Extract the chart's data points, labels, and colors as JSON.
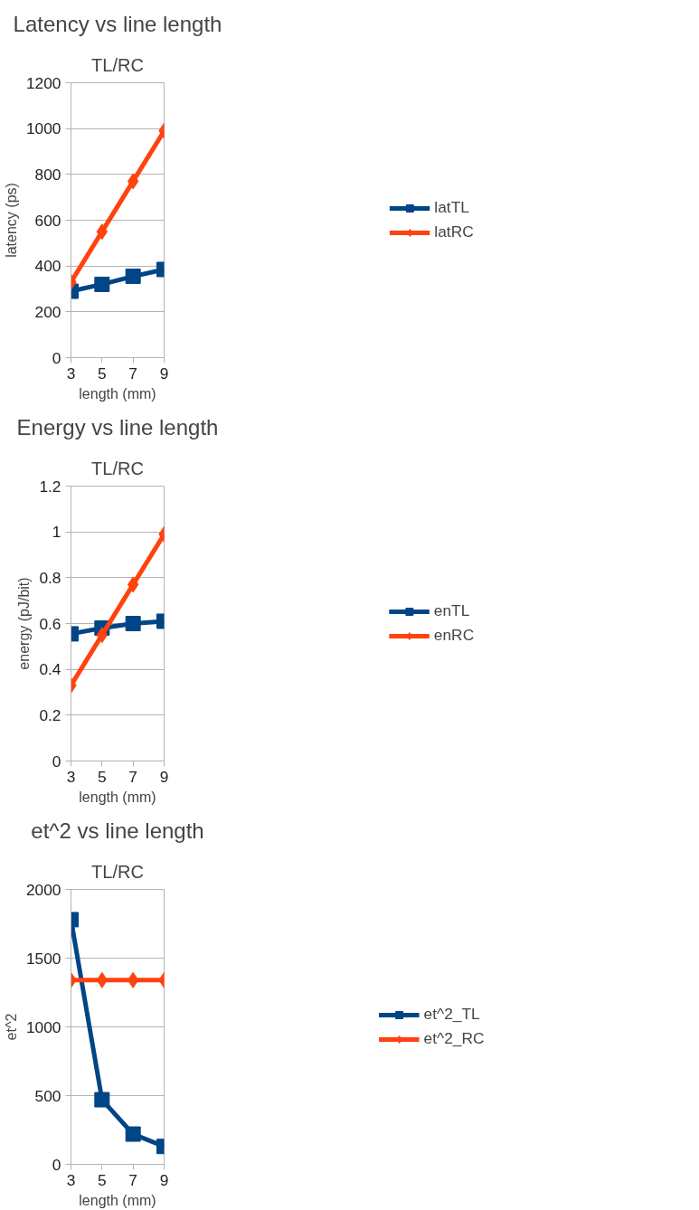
{
  "chart_data": [
    {
      "type": "line",
      "title": "Latency vs line length",
      "subtitle": "TL/RC",
      "xlabel": "length (mm)",
      "ylabel": "latency (ps)",
      "x": [
        3,
        5,
        7,
        9
      ],
      "xlim": [
        3,
        9
      ],
      "xticks": [
        3,
        5,
        7,
        9
      ],
      "ylim": [
        0,
        1200
      ],
      "yticks": [
        0,
        200,
        400,
        600,
        800,
        1000,
        1200
      ],
      "grid": "y",
      "legend": "right",
      "line_style": "solid",
      "series": [
        {
          "name": "latTL",
          "color": "#004586",
          "marker": "square",
          "values": [
            290,
            320,
            355,
            385
          ]
        },
        {
          "name": "latRC",
          "color": "#ff420e",
          "marker": "diamond",
          "values": [
            330,
            550,
            770,
            990
          ]
        }
      ]
    },
    {
      "type": "line",
      "title": "Energy vs line length",
      "subtitle": "TL/RC",
      "xlabel": "length (mm)",
      "ylabel": "energy (pJ/bit)",
      "x": [
        3,
        5,
        7,
        9
      ],
      "xlim": [
        3,
        9
      ],
      "xticks": [
        3,
        5,
        7,
        9
      ],
      "ylim": [
        0,
        1.2
      ],
      "yticks": [
        0,
        0.2,
        0.4,
        0.6,
        0.8,
        1,
        1.2
      ],
      "grid": "y",
      "legend": "right",
      "line_style": "solid",
      "series": [
        {
          "name": "enTL",
          "color": "#004586",
          "marker": "square",
          "values": [
            0.555,
            0.58,
            0.6,
            0.61
          ]
        },
        {
          "name": "enRC",
          "color": "#ff420e",
          "marker": "diamond",
          "values": [
            0.33,
            0.55,
            0.77,
            0.99
          ]
        }
      ]
    },
    {
      "type": "line",
      "title": "et^2 vs line length",
      "subtitle": "TL/RC",
      "xlabel": "length (mm)",
      "ylabel": "et^2",
      "x": [
        3,
        5,
        7,
        9
      ],
      "xlim": [
        3,
        9
      ],
      "xticks": [
        3,
        5,
        7,
        9
      ],
      "ylim": [
        0,
        2000
      ],
      "yticks": [
        0,
        500,
        1000,
        1500,
        2000
      ],
      "grid": "y",
      "legend": "right",
      "line_style": "solid",
      "series": [
        {
          "name": "et^2_TL",
          "color": "#004586",
          "marker": "square",
          "values": [
            1780,
            470,
            220,
            130
          ]
        },
        {
          "name": "et^2_RC",
          "color": "#ff420e",
          "marker": "diamond",
          "values": [
            1340,
            1340,
            1340,
            1340
          ]
        }
      ]
    }
  ]
}
